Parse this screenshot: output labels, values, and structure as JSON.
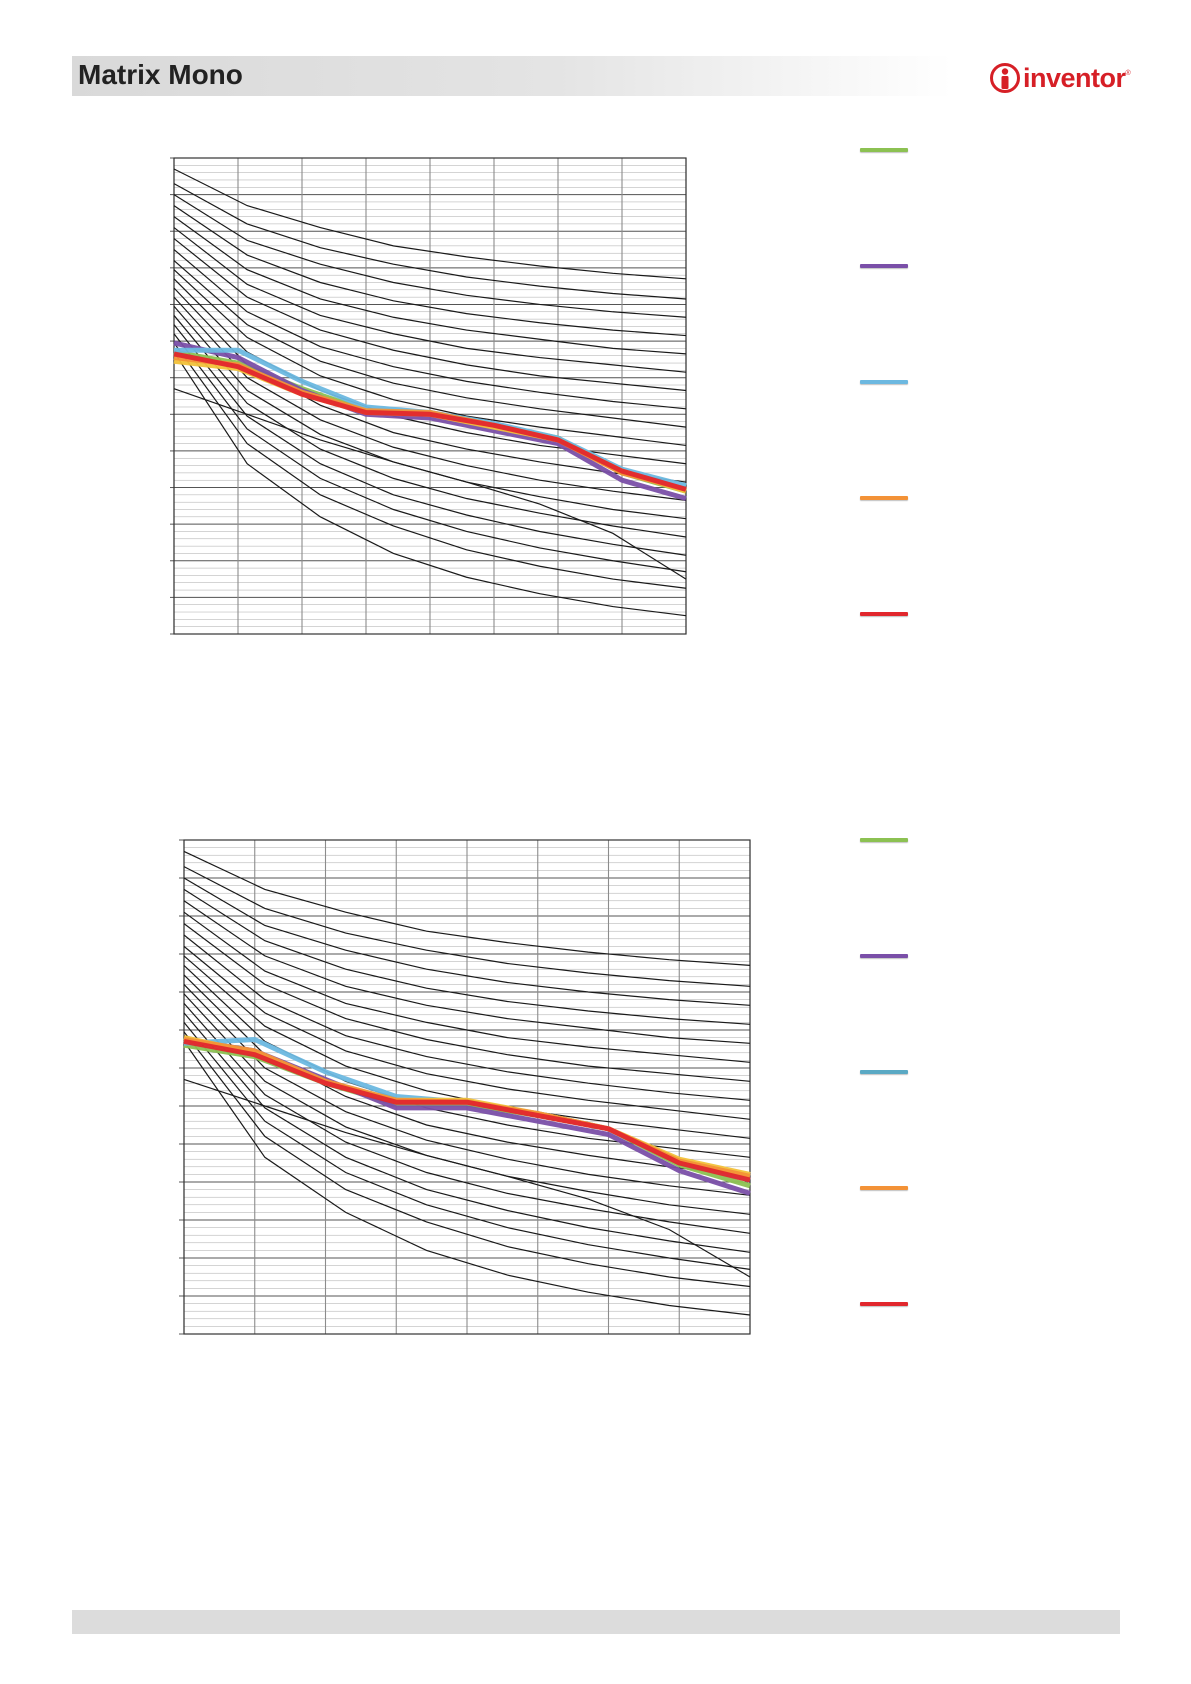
{
  "header": {
    "title": "Matrix Mono"
  },
  "logo": {
    "text": "inventor",
    "reg": "®"
  },
  "colors": {
    "brand_red": "#d61f26",
    "green": "#8cc152",
    "purple": "#7a4fa8",
    "light_blue": "#6cb8e0",
    "teal_blue": "#5aa9c4",
    "orange": "#f39237",
    "yellow": "#f2c23a",
    "red": "#e1272d",
    "grid": "#8c8c8c",
    "curve": "#1a1a1a"
  },
  "legend_top": {
    "items": [
      {
        "icon": "green-line-swatch",
        "color": "#8cc152"
      },
      {
        "icon": "purple-line-swatch",
        "color": "#7a4fa8"
      },
      {
        "icon": "light-blue-line-swatch",
        "color": "#6cb8e0"
      },
      {
        "icon": "orange-line-swatch",
        "color": "#f39237"
      },
      {
        "icon": "red-line-swatch",
        "color": "#e1272d"
      }
    ]
  },
  "legend_bottom": {
    "items": [
      {
        "icon": "green-line-swatch",
        "color": "#8cc152"
      },
      {
        "icon": "purple-line-swatch",
        "color": "#7a4fa8"
      },
      {
        "icon": "teal-line-swatch",
        "color": "#5aa9c4"
      },
      {
        "icon": "orange-line-swatch",
        "color": "#f39237"
      },
      {
        "icon": "red-line-swatch",
        "color": "#e1272d"
      }
    ]
  },
  "chart_data": [
    {
      "type": "line",
      "grid": true,
      "x_divisions": 8,
      "xlim": [
        0,
        8
      ],
      "ylim": [
        0,
        13
      ],
      "minor_grid_y": 65,
      "major_grid_y": 13,
      "background_curves": [
        [
          12.7,
          11.7,
          11.1,
          10.6,
          10.3,
          10.05,
          9.85,
          9.7
        ],
        [
          12.3,
          11.2,
          10.55,
          10.1,
          9.75,
          9.5,
          9.3,
          9.15
        ],
        [
          12.0,
          10.75,
          10.1,
          9.6,
          9.25,
          9.0,
          8.8,
          8.65
        ],
        [
          11.7,
          10.35,
          9.6,
          9.1,
          8.75,
          8.5,
          8.3,
          8.15
        ],
        [
          11.4,
          9.95,
          9.15,
          8.65,
          8.3,
          8.05,
          7.8,
          7.65
        ],
        [
          11.1,
          9.55,
          8.7,
          8.2,
          7.8,
          7.55,
          7.35,
          7.15
        ],
        [
          10.8,
          9.2,
          8.3,
          7.75,
          7.35,
          7.05,
          6.85,
          6.65
        ],
        [
          10.5,
          8.8,
          7.85,
          7.3,
          6.9,
          6.6,
          6.35,
          6.15
        ],
        [
          10.2,
          8.45,
          7.45,
          6.85,
          6.45,
          6.15,
          5.9,
          5.65
        ],
        [
          9.95,
          8.1,
          7.05,
          6.4,
          5.95,
          5.65,
          5.4,
          5.15
        ],
        [
          9.7,
          7.7,
          6.65,
          5.95,
          5.5,
          5.15,
          4.9,
          4.65
        ],
        [
          9.45,
          7.35,
          6.25,
          5.5,
          5.05,
          4.7,
          4.4,
          4.15
        ],
        [
          9.2,
          7.0,
          5.85,
          5.1,
          4.6,
          4.2,
          3.9,
          3.65
        ],
        [
          8.95,
          6.65,
          5.45,
          4.7,
          4.15,
          3.75,
          3.4,
          3.15
        ],
        [
          8.7,
          6.3,
          5.05,
          4.25,
          3.7,
          3.3,
          2.95,
          2.65
        ],
        [
          8.45,
          5.95,
          4.65,
          3.8,
          3.25,
          2.8,
          2.45,
          2.15
        ],
        [
          8.2,
          5.6,
          4.25,
          3.4,
          2.8,
          2.35,
          2.0,
          1.7
        ],
        [
          7.95,
          5.2,
          3.8,
          2.95,
          2.3,
          1.85,
          1.5,
          1.25
        ],
        [
          7.7,
          4.65,
          3.2,
          2.2,
          1.55,
          1.1,
          0.75,
          0.5
        ],
        [
          6.7,
          6.0,
          5.3,
          4.7,
          4.15,
          3.55,
          2.75,
          1.5
        ]
      ],
      "series": [
        {
          "color": "#8cc152",
          "values": [
            7.7,
            7.4,
            6.7,
            6.1,
            6.05,
            5.7,
            5.35,
            4.4,
            3.9
          ]
        },
        {
          "color": "#7a4fa8",
          "values": [
            7.95,
            7.55,
            6.65,
            6.0,
            5.9,
            5.55,
            5.2,
            4.2,
            3.7
          ]
        },
        {
          "color": "#6cb8e0",
          "values": [
            7.75,
            7.75,
            6.9,
            6.2,
            6.05,
            5.75,
            5.35,
            4.5,
            4.05
          ]
        },
        {
          "color": "#f2c23a",
          "values": [
            7.45,
            7.25,
            6.55,
            6.05,
            6.0,
            5.65,
            5.3,
            4.45,
            3.9
          ]
        },
        {
          "color": "#f39237",
          "values": [
            7.55,
            7.35,
            6.6,
            6.1,
            6.05,
            5.7,
            5.3,
            4.4,
            3.95
          ]
        },
        {
          "color": "#e1272d",
          "values": [
            7.65,
            7.3,
            6.55,
            6.05,
            6.0,
            5.7,
            5.3,
            4.45,
            3.95
          ]
        }
      ]
    },
    {
      "type": "line",
      "grid": true,
      "x_divisions": 8,
      "xlim": [
        0,
        8
      ],
      "ylim": [
        0,
        13
      ],
      "minor_grid_y": 65,
      "major_grid_y": 13,
      "background_curves": [
        [
          12.7,
          11.7,
          11.1,
          10.6,
          10.3,
          10.05,
          9.85,
          9.7
        ],
        [
          12.3,
          11.2,
          10.55,
          10.1,
          9.75,
          9.5,
          9.3,
          9.15
        ],
        [
          12.0,
          10.75,
          10.1,
          9.6,
          9.25,
          9.0,
          8.8,
          8.65
        ],
        [
          11.7,
          10.35,
          9.6,
          9.1,
          8.75,
          8.5,
          8.3,
          8.15
        ],
        [
          11.4,
          9.95,
          9.15,
          8.65,
          8.3,
          8.05,
          7.8,
          7.65
        ],
        [
          11.1,
          9.55,
          8.7,
          8.2,
          7.8,
          7.55,
          7.35,
          7.15
        ],
        [
          10.8,
          9.2,
          8.3,
          7.75,
          7.35,
          7.05,
          6.85,
          6.65
        ],
        [
          10.5,
          8.8,
          7.85,
          7.3,
          6.9,
          6.6,
          6.35,
          6.15
        ],
        [
          10.2,
          8.45,
          7.45,
          6.85,
          6.45,
          6.15,
          5.9,
          5.65
        ],
        [
          9.95,
          8.1,
          7.05,
          6.4,
          5.95,
          5.65,
          5.4,
          5.15
        ],
        [
          9.7,
          7.7,
          6.65,
          5.95,
          5.5,
          5.15,
          4.9,
          4.65
        ],
        [
          9.45,
          7.35,
          6.25,
          5.5,
          5.05,
          4.7,
          4.4,
          4.15
        ],
        [
          9.2,
          7.0,
          5.85,
          5.1,
          4.6,
          4.2,
          3.9,
          3.65
        ],
        [
          8.95,
          6.65,
          5.45,
          4.7,
          4.15,
          3.75,
          3.4,
          3.15
        ],
        [
          8.7,
          6.3,
          5.05,
          4.25,
          3.7,
          3.3,
          2.95,
          2.65
        ],
        [
          8.45,
          5.95,
          4.65,
          3.8,
          3.25,
          2.8,
          2.45,
          2.15
        ],
        [
          8.2,
          5.6,
          4.25,
          3.4,
          2.8,
          2.35,
          2.0,
          1.7
        ],
        [
          7.95,
          5.2,
          3.8,
          2.95,
          2.3,
          1.85,
          1.5,
          1.25
        ],
        [
          7.7,
          4.65,
          3.2,
          2.2,
          1.55,
          1.1,
          0.75,
          0.5
        ],
        [
          6.7,
          6.0,
          5.3,
          4.7,
          4.15,
          3.55,
          2.75,
          1.5
        ]
      ],
      "series": [
        {
          "color": "#8cc152",
          "values": [
            7.6,
            7.3,
            6.6,
            6.05,
            6.05,
            5.75,
            5.4,
            4.45,
            3.9
          ]
        },
        {
          "color": "#7a4fa8",
          "values": [
            7.75,
            7.45,
            6.7,
            5.95,
            5.95,
            5.6,
            5.25,
            4.3,
            3.7
          ]
        },
        {
          "color": "#6cb8e0",
          "values": [
            7.65,
            7.75,
            6.9,
            6.25,
            6.1,
            5.8,
            5.4,
            4.55,
            4.05
          ]
        },
        {
          "color": "#f2c23a",
          "values": [
            7.8,
            7.4,
            6.6,
            6.15,
            6.15,
            5.8,
            5.4,
            4.6,
            4.2
          ]
        },
        {
          "color": "#f39237",
          "values": [
            7.75,
            7.45,
            6.65,
            6.15,
            6.1,
            5.8,
            5.4,
            4.55,
            4.15
          ]
        },
        {
          "color": "#e1272d",
          "values": [
            7.7,
            7.35,
            6.6,
            6.1,
            6.1,
            5.75,
            5.4,
            4.5,
            4.05
          ]
        }
      ]
    }
  ]
}
